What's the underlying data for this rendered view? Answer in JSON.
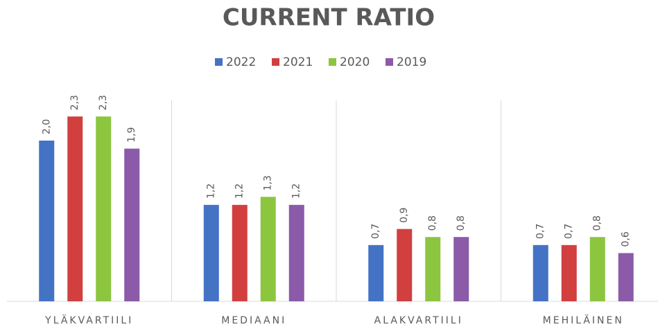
{
  "chart_data": {
    "type": "bar",
    "title": "CURRENT RATIO",
    "categories": [
      "YLÄKVARTIILI",
      "MEDIAANI",
      "ALAKVARTIILI",
      "MEHILÄINEN"
    ],
    "series": [
      {
        "name": "2022",
        "color": "#4472c4",
        "values": [
          2.0,
          1.2,
          0.7,
          0.7
        ],
        "value_labels": [
          "2,0",
          "1,2",
          "0,7",
          "0,7"
        ]
      },
      {
        "name": "2021",
        "color": "#d13f3f",
        "values": [
          2.3,
          1.2,
          0.9,
          0.7
        ],
        "value_labels": [
          "2,3",
          "1,2",
          "0,9",
          "0,7"
        ]
      },
      {
        "name": "2020",
        "color": "#8cc63f",
        "values": [
          2.3,
          1.3,
          0.8,
          0.8
        ],
        "value_labels": [
          "2,3",
          "1,3",
          "0,8",
          "0,8"
        ]
      },
      {
        "name": "2019",
        "color": "#8b5aa8",
        "values": [
          1.9,
          1.2,
          0.8,
          0.6
        ],
        "value_labels": [
          "1,9",
          "1,2",
          "0,8",
          "0,6"
        ]
      }
    ],
    "ylim": [
      0,
      2.5
    ],
    "legend": "top"
  }
}
